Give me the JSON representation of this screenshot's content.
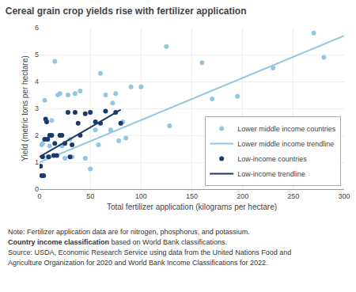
{
  "chart_data": {
    "type": "scatter",
    "title": "Cereal grain crop yields rise with fertilizer application",
    "xlabel": "Total fertilizer application (kilograms per hectare)",
    "ylabel": "Yield (metric tons per hectare)",
    "xlim": [
      0,
      300
    ],
    "ylim": [
      0,
      6
    ],
    "xticks": [
      0,
      50,
      100,
      150,
      200,
      250,
      300
    ],
    "yticks": [
      0,
      1,
      2,
      3,
      4,
      5,
      6
    ],
    "grid": true,
    "legend": "lower right",
    "series": [
      {
        "name": "Lower middle income countries",
        "type": "scatter",
        "marker": "circle",
        "color": "#93C6E0",
        "x": [
          2,
          3,
          5,
          7,
          8,
          10,
          12,
          15,
          18,
          20,
          22,
          25,
          28,
          30,
          32,
          35,
          40,
          45,
          50,
          55,
          58,
          60,
          65,
          70,
          72,
          75,
          78,
          80,
          82,
          85,
          90,
          100,
          125,
          128,
          160,
          170,
          195,
          230,
          270,
          280
        ],
        "values": [
          1.65,
          1.7,
          3.3,
          1.85,
          1.2,
          1.6,
          2.55,
          4.75,
          3.5,
          3.55,
          1.6,
          1.15,
          3.5,
          1.85,
          1.2,
          3.55,
          3.65,
          1.15,
          0.75,
          2.2,
          1.65,
          4.3,
          3.5,
          2.2,
          3.2,
          3.55,
          1.8,
          2.45,
          2.5,
          1.9,
          3.8,
          3.8,
          5.3,
          2.35,
          4.7,
          3.35,
          3.45,
          4.5,
          5.8,
          4.9
        ]
      },
      {
        "name": "Lower middle income trendline",
        "type": "line",
        "line_style": "solid",
        "color": "#93C6E0",
        "x": [
          0,
          300
        ],
        "values": [
          1.0,
          5.7
        ]
      },
      {
        "name": "Low-income countries",
        "type": "scatter",
        "marker": "circle",
        "color": "#1B3A6B",
        "x": [
          1,
          2,
          3,
          4,
          5,
          6,
          7,
          8,
          9,
          10,
          12,
          14,
          15,
          17,
          20,
          22,
          25,
          28,
          30,
          32,
          35,
          38,
          40,
          45,
          50,
          55,
          60,
          65,
          75,
          80
        ],
        "values": [
          0.85,
          0.5,
          1.2,
          0.5,
          1.85,
          2.6,
          2.5,
          1.85,
          1.2,
          2.0,
          2.0,
          1.25,
          1.7,
          1.25,
          2.0,
          2.0,
          1.7,
          2.85,
          1.2,
          1.65,
          2.85,
          2.45,
          2.0,
          2.8,
          2.85,
          2.5,
          2.45,
          2.9,
          2.85,
          2.45
        ]
      },
      {
        "name": "Low-income trendline",
        "type": "line",
        "line_style": "solid",
        "color": "#1B3A6B",
        "x": [
          0,
          80
        ],
        "values": [
          1.2,
          2.95
        ]
      }
    ],
    "annotations": [
      "Note: Fertilizer application data are for nitrogen, phosphorus, and potassium.",
      "Country income classification",
      "based on World Bank classifications.",
      "Source: USDA, Economic Research Service using data from the United Nations Food and",
      "Agriculture Organization for 2020 and World Bank Income Classifications for 2022."
    ]
  }
}
